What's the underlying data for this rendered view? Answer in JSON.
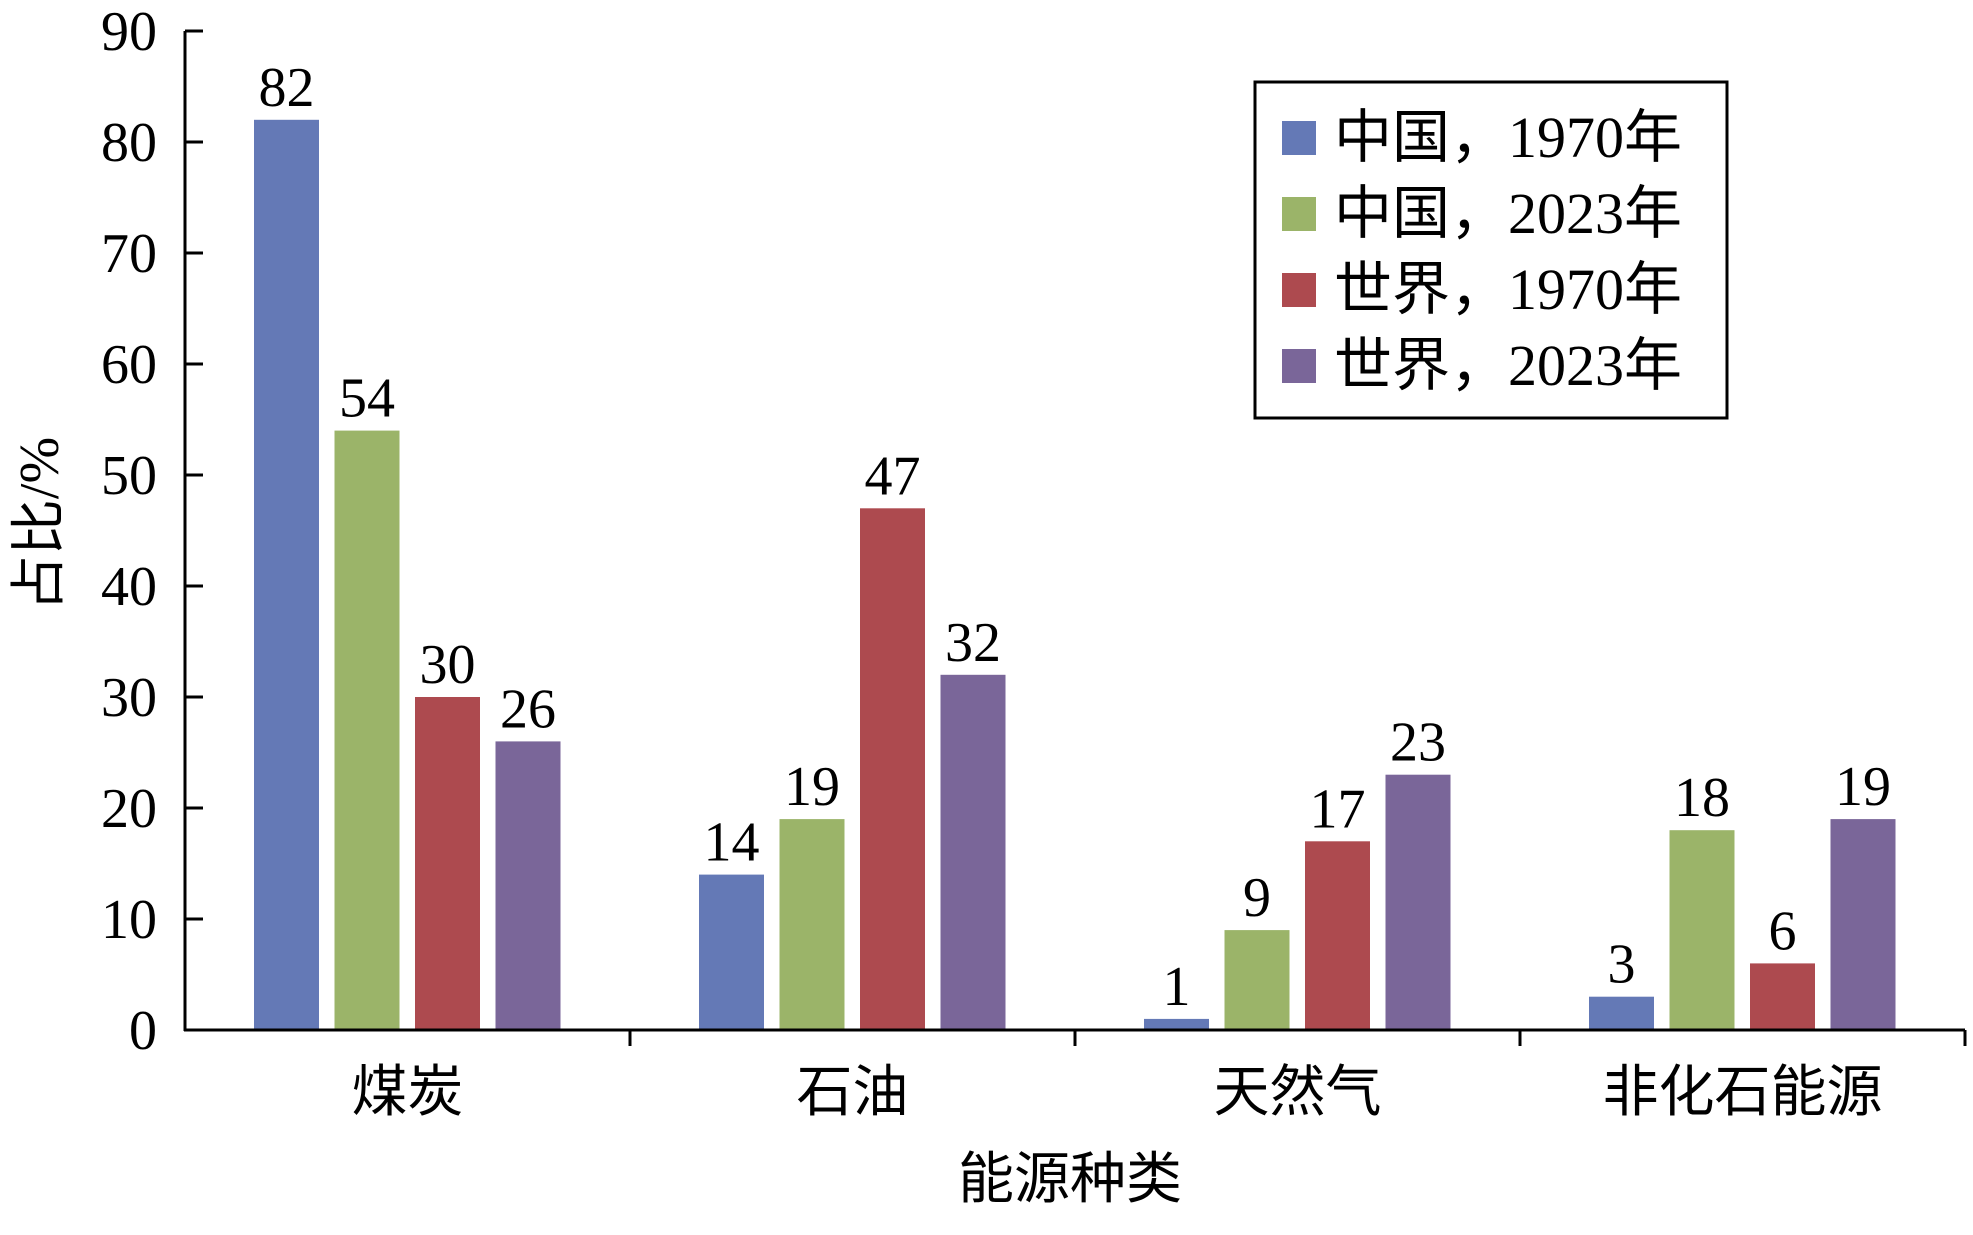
{
  "chart_data": {
    "type": "bar",
    "title": "",
    "xlabel": "能源种类",
    "ylabel": "占比/%",
    "categories": [
      "煤炭",
      "石油",
      "天然气",
      "非化石能源"
    ],
    "series": [
      {
        "name": "中国，1970年",
        "color": "#6479B6",
        "values": [
          82,
          14,
          1,
          3
        ]
      },
      {
        "name": "中国，2023年",
        "color": "#9BB469",
        "values": [
          54,
          19,
          9,
          18
        ]
      },
      {
        "name": "世界，1970年",
        "color": "#AD4A4F",
        "values": [
          30,
          47,
          17,
          6
        ]
      },
      {
        "name": "世界，2023年",
        "color": "#7A6699",
        "values": [
          26,
          32,
          23,
          19
        ]
      }
    ],
    "ylim": [
      0,
      90
    ],
    "yticks": [
      0,
      10,
      20,
      30,
      40,
      50,
      60,
      70,
      80,
      90
    ],
    "grid": false,
    "legend_position": "top-right",
    "data_labels": true
  }
}
